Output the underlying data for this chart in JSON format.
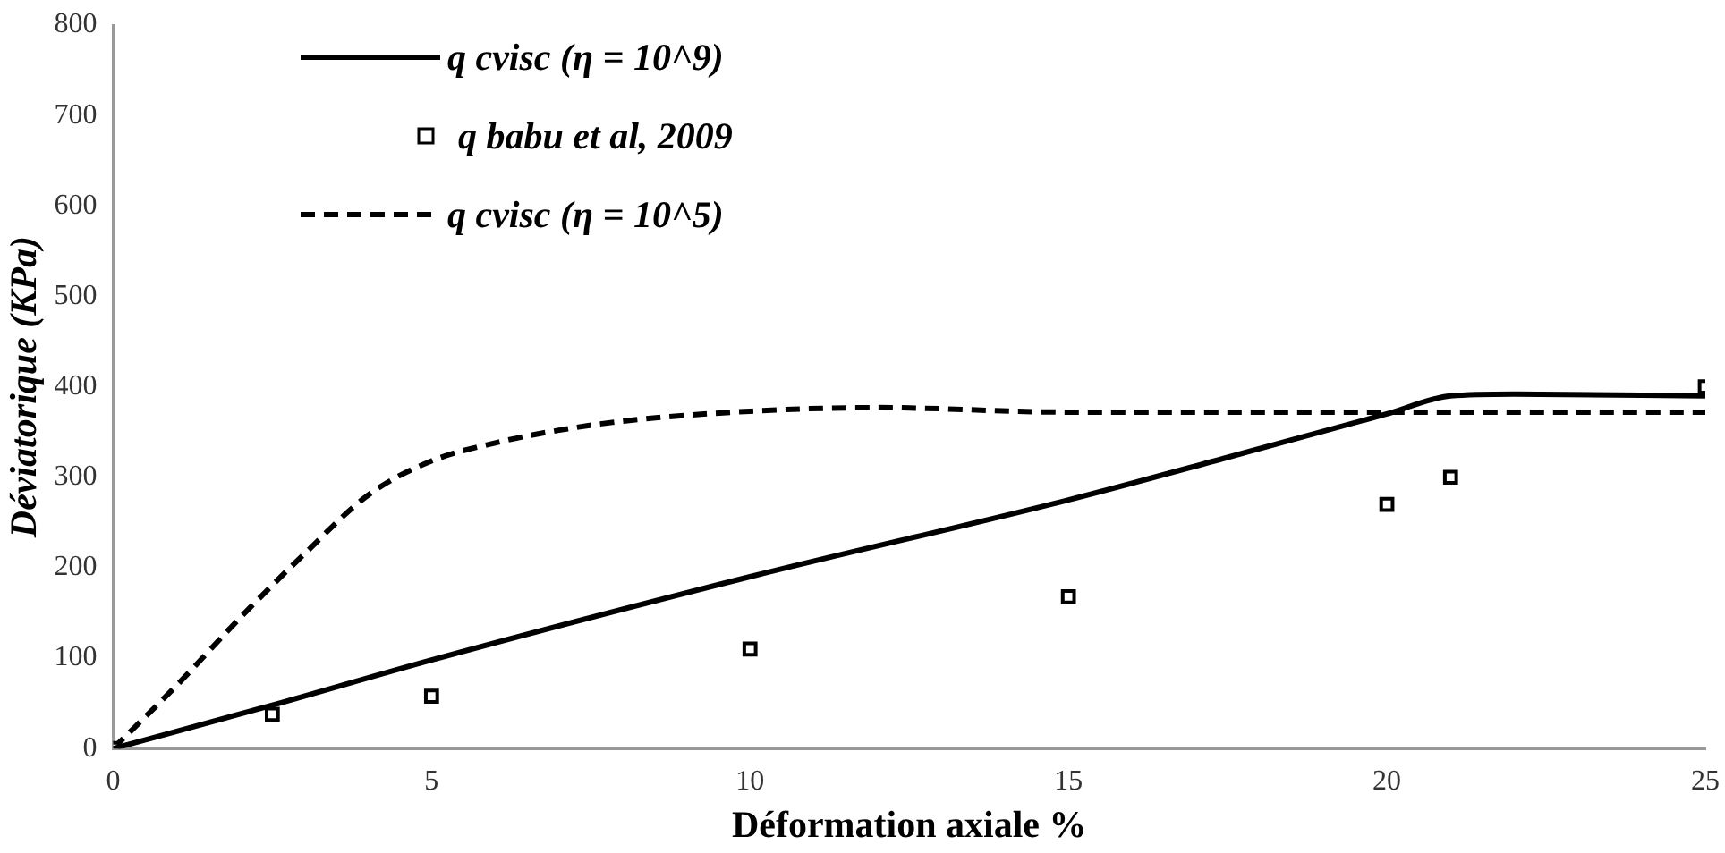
{
  "chart_data": {
    "type": "line",
    "xlabel": "Déformation axiale %",
    "ylabel": "Déviatorique (KPa)",
    "xlim": [
      0,
      25
    ],
    "xticks": [
      0,
      5,
      10,
      15,
      20,
      25
    ],
    "ylim": [
      0,
      800
    ],
    "yticks": [
      0,
      100,
      200,
      300,
      400,
      500,
      600,
      700,
      800
    ],
    "grid": false,
    "legend": "top left",
    "series": [
      {
        "name": "q cvisc (η = 10^9)",
        "color": "#000000",
        "line_style": "solid",
        "marker": "none",
        "x": [
          0,
          2.5,
          5,
          10,
          15,
          17.5,
          20,
          21,
          22,
          25
        ],
        "values": [
          0,
          48,
          98,
          190,
          275,
          322,
          370,
          390,
          392,
          390
        ]
      },
      {
        "name": "q babu et al, 2009",
        "type": "scatter",
        "color": "#000000",
        "marker": "square",
        "x": [
          0,
          2.5,
          5,
          10,
          15,
          20,
          21,
          25
        ],
        "values": [
          0,
          38,
          58,
          110,
          168,
          270,
          300,
          400
        ]
      },
      {
        "name": "q cvisc (η = 10^5)",
        "color": "#000000",
        "line_style": "dashed",
        "marker": "none",
        "x": [
          0,
          1,
          2,
          3,
          4,
          5,
          6,
          7,
          8,
          10,
          12,
          15,
          20,
          25
        ],
        "values": [
          0,
          70,
          145,
          215,
          280,
          318,
          338,
          352,
          362,
          373,
          377,
          372,
          372,
          372
        ]
      }
    ]
  }
}
